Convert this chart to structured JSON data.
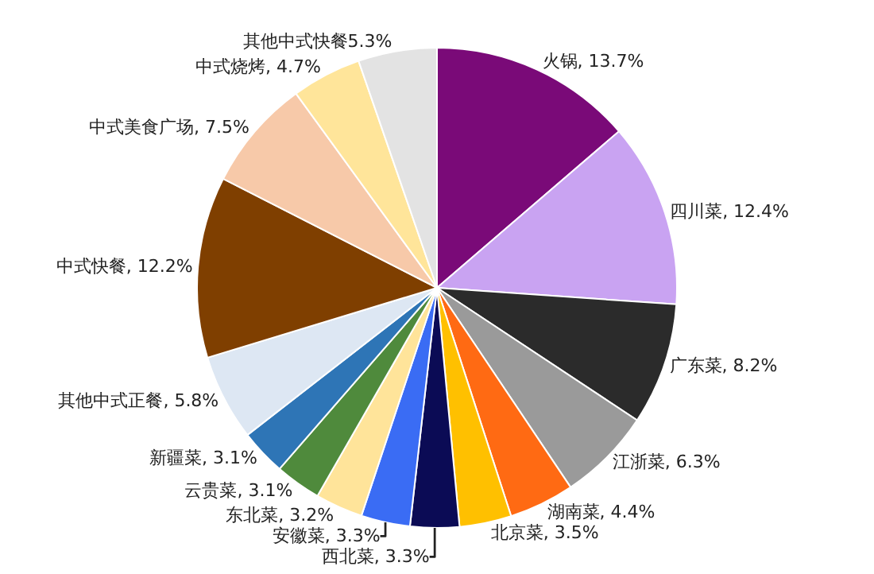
{
  "chart_data": {
    "type": "pie",
    "categories": [
      "火锅",
      "四川菜",
      "广东菜",
      "江浙菜",
      "湖南菜",
      "北京菜",
      "西北菜",
      "安徽菜",
      "东北菜",
      "云贵菜",
      "新疆菜",
      "其他中式正餐",
      "中式快餐",
      "中式美食广场",
      "中式烧烤",
      "其他中式快餐"
    ],
    "values": [
      13.7,
      12.4,
      8.2,
      6.3,
      4.4,
      3.5,
      3.3,
      3.3,
      3.2,
      3.1,
      3.1,
      5.8,
      12.2,
      7.5,
      4.7,
      5.3
    ],
    "value_labels": [
      ", 13.7%",
      ", 12.4%",
      ", 8.2%",
      ", 6.3%",
      ", 4.4%",
      ", 3.5%",
      ", 3.3%",
      ", 3.3%",
      ", 3.2%",
      ", 3.1%",
      ", 3.1%",
      ", 5.8%",
      ", 12.2%",
      ", 7.5%",
      ", 4.7%",
      "5.3%"
    ],
    "colors": [
      "#7a0a78",
      "#c9a3f2",
      "#2b2b2b",
      "#9a9a9a",
      "#ff6a13",
      "#ffc000",
      "#0b0b55",
      "#3a6cf4",
      "#ffe49a",
      "#4f8a3c",
      "#2e75b6",
      "#dde7f3",
      "#7f3f00",
      "#f7c9a9",
      "#ffe59a",
      "#e3e3e3"
    ],
    "legend": false
  }
}
